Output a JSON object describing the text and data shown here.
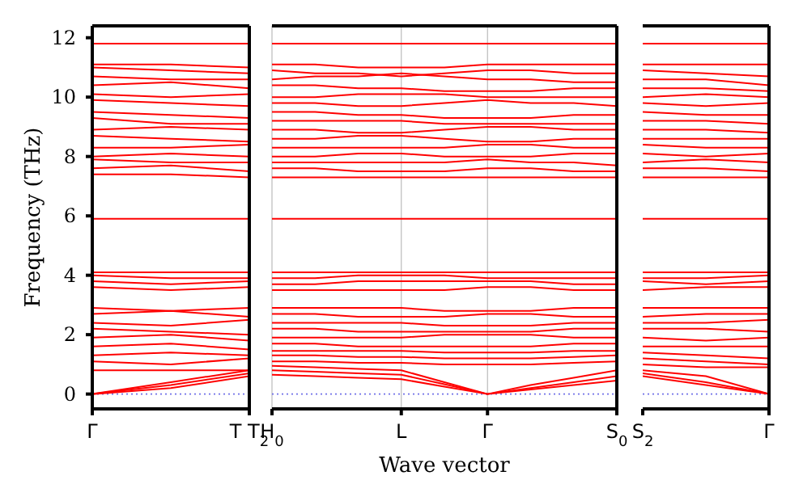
{
  "chart_data": [
    {
      "type": "line",
      "ylabel": "Frequency (THz)",
      "categories": [
        "Γ",
        null,
        "T T$_{2}$"
      ],
      "ylim": [
        -0.5,
        12.4
      ],
      "yticks": [
        0,
        2,
        4,
        6,
        8,
        10,
        12
      ],
      "color": "#ff0000",
      "marker": "none",
      "line_style": "solid",
      "ref_lines": [
        {
          "axis": "y",
          "value": 0,
          "color": "#6f6fe8",
          "line_style": "dotted"
        }
      ],
      "series": [
        {
          "values": [
            11.8,
            11.8,
            11.8
          ]
        },
        {
          "values": [
            11.1,
            11.1,
            11.0
          ]
        },
        {
          "values": [
            11.0,
            10.9,
            10.8
          ]
        },
        {
          "values": [
            10.7,
            10.6,
            10.6
          ]
        },
        {
          "values": [
            10.4,
            10.5,
            10.3
          ]
        },
        {
          "values": [
            10.1,
            10.0,
            10.1
          ]
        },
        {
          "values": [
            9.9,
            9.8,
            9.7
          ]
        },
        {
          "values": [
            9.5,
            9.4,
            9.3
          ]
        },
        {
          "values": [
            9.3,
            9.1,
            9.1
          ]
        },
        {
          "values": [
            8.9,
            9.0,
            8.9
          ]
        },
        {
          "values": [
            8.7,
            8.6,
            8.5
          ]
        },
        {
          "values": [
            8.3,
            8.3,
            8.4
          ]
        },
        {
          "values": [
            8.0,
            8.1,
            8.0
          ]
        },
        {
          "values": [
            7.9,
            7.8,
            7.8
          ]
        },
        {
          "values": [
            7.6,
            7.7,
            7.5
          ]
        },
        {
          "values": [
            7.4,
            7.4,
            7.3
          ]
        },
        {
          "values": [
            5.9,
            5.9,
            5.9
          ]
        },
        {
          "values": [
            4.1,
            4.1,
            4.1
          ]
        },
        {
          "values": [
            4.0,
            3.9,
            3.9
          ]
        },
        {
          "values": [
            3.8,
            3.7,
            3.8
          ]
        },
        {
          "values": [
            3.6,
            3.5,
            3.6
          ]
        },
        {
          "values": [
            2.9,
            2.8,
            2.9
          ]
        },
        {
          "values": [
            2.7,
            2.8,
            2.6
          ]
        },
        {
          "values": [
            2.4,
            2.3,
            2.5
          ]
        },
        {
          "values": [
            2.2,
            2.1,
            2.0
          ]
        },
        {
          "values": [
            1.9,
            2.0,
            1.8
          ]
        },
        {
          "values": [
            1.6,
            1.7,
            1.5
          ]
        },
        {
          "values": [
            1.3,
            1.4,
            1.3
          ]
        },
        {
          "values": [
            1.1,
            1.0,
            1.2
          ]
        },
        {
          "values": [
            0.8,
            0.8,
            0.8
          ]
        },
        {
          "values": [
            0,
            0.4,
            0.8
          ]
        },
        {
          "values": [
            0,
            0.3,
            0.7
          ]
        },
        {
          "values": [
            0,
            0.2,
            0.6
          ]
        }
      ]
    },
    {
      "type": "line",
      "xlabel": "Wave vector",
      "categories": [
        "H$_{0}$",
        null,
        null,
        "L",
        null,
        "Γ",
        null,
        null,
        "S$_{0}$"
      ],
      "ylim": [
        -0.5,
        12.4
      ],
      "yticks": [
        0,
        2,
        4,
        6,
        8,
        10,
        12
      ],
      "tick_labels": "x",
      "color": "#ff0000",
      "marker": "none",
      "line_style": "solid",
      "grid": "x",
      "ref_lines": [
        {
          "axis": "y",
          "value": 0,
          "color": "#6f6fe8",
          "line_style": "dotted"
        }
      ],
      "series": [
        {
          "values": [
            11.8,
            11.8,
            11.8,
            11.8,
            11.8,
            11.8,
            11.8,
            11.8,
            11.8
          ]
        },
        {
          "values": [
            11.1,
            11.1,
            11.0,
            11.0,
            11.0,
            11.1,
            11.1,
            11.1,
            11.1
          ]
        },
        {
          "values": [
            10.9,
            10.8,
            10.8,
            10.7,
            10.8,
            10.9,
            10.9,
            10.8,
            10.8
          ]
        },
        {
          "values": [
            10.6,
            10.7,
            10.7,
            10.8,
            10.7,
            10.6,
            10.6,
            10.5,
            10.5
          ]
        },
        {
          "values": [
            10.4,
            10.4,
            10.3,
            10.3,
            10.2,
            10.2,
            10.2,
            10.3,
            10.3
          ]
        },
        {
          "values": [
            10.0,
            10.0,
            10.1,
            10.1,
            10.1,
            10.0,
            10.0,
            10.0,
            10.0
          ]
        },
        {
          "values": [
            9.8,
            9.8,
            9.7,
            9.7,
            9.8,
            9.9,
            9.8,
            9.8,
            9.7
          ]
        },
        {
          "values": [
            9.5,
            9.5,
            9.4,
            9.4,
            9.3,
            9.3,
            9.3,
            9.4,
            9.4
          ]
        },
        {
          "values": [
            9.2,
            9.2,
            9.2,
            9.2,
            9.1,
            9.1,
            9.1,
            9.1,
            9.1
          ]
        },
        {
          "values": [
            8.9,
            8.9,
            8.8,
            8.8,
            8.9,
            9.0,
            9.0,
            8.9,
            8.9
          ]
        },
        {
          "values": [
            8.6,
            8.6,
            8.7,
            8.7,
            8.6,
            8.5,
            8.5,
            8.6,
            8.6
          ]
        },
        {
          "values": [
            8.3,
            8.3,
            8.3,
            8.3,
            8.3,
            8.4,
            8.4,
            8.3,
            8.3
          ]
        },
        {
          "values": [
            8.0,
            8.0,
            8.1,
            8.1,
            8.0,
            8.0,
            8.0,
            8.1,
            8.1
          ]
        },
        {
          "values": [
            7.8,
            7.8,
            7.8,
            7.8,
            7.8,
            7.9,
            7.8,
            7.8,
            7.7
          ]
        },
        {
          "values": [
            7.6,
            7.6,
            7.5,
            7.5,
            7.5,
            7.6,
            7.6,
            7.5,
            7.5
          ]
        },
        {
          "values": [
            7.3,
            7.3,
            7.3,
            7.3,
            7.3,
            7.3,
            7.3,
            7.3,
            7.3
          ]
        },
        {
          "values": [
            5.9,
            5.9,
            5.9,
            5.9,
            5.9,
            5.9,
            5.9,
            5.9,
            5.9
          ]
        },
        {
          "values": [
            4.1,
            4.1,
            4.1,
            4.1,
            4.1,
            4.1,
            4.1,
            4.1,
            4.1
          ]
        },
        {
          "values": [
            3.9,
            3.9,
            4.0,
            4.0,
            4.0,
            3.9,
            3.9,
            3.9,
            3.9
          ]
        },
        {
          "values": [
            3.7,
            3.7,
            3.8,
            3.8,
            3.8,
            3.8,
            3.8,
            3.7,
            3.7
          ]
        },
        {
          "values": [
            3.5,
            3.5,
            3.5,
            3.5,
            3.5,
            3.6,
            3.6,
            3.5,
            3.5
          ]
        },
        {
          "values": [
            2.9,
            2.9,
            2.9,
            2.9,
            2.8,
            2.8,
            2.8,
            2.9,
            2.9
          ]
        },
        {
          "values": [
            2.7,
            2.7,
            2.6,
            2.6,
            2.6,
            2.7,
            2.7,
            2.6,
            2.6
          ]
        },
        {
          "values": [
            2.4,
            2.4,
            2.4,
            2.4,
            2.3,
            2.3,
            2.3,
            2.4,
            2.4
          ]
        },
        {
          "values": [
            2.2,
            2.2,
            2.1,
            2.1,
            2.1,
            2.1,
            2.1,
            2.2,
            2.2
          ]
        },
        {
          "values": [
            1.9,
            1.9,
            1.9,
            1.9,
            2.0,
            2.0,
            2.0,
            1.9,
            1.9
          ]
        },
        {
          "values": [
            1.7,
            1.7,
            1.6,
            1.6,
            1.6,
            1.6,
            1.6,
            1.7,
            1.7
          ]
        },
        {
          "values": [
            1.45,
            1.45,
            1.45,
            1.45,
            1.4,
            1.4,
            1.4,
            1.45,
            1.45
          ]
        },
        {
          "values": [
            1.3,
            1.3,
            1.25,
            1.25,
            1.2,
            1.2,
            1.2,
            1.25,
            1.3
          ]
        },
        {
          "values": [
            1.1,
            1.1,
            1.05,
            1.05,
            1.0,
            1.0,
            1.0,
            1.05,
            1.1
          ]
        },
        {
          "values": [
            0.95,
            0.9,
            0.85,
            0.8,
            0.4,
            0,
            0.3,
            0.55,
            0.8
          ]
        },
        {
          "values": [
            0.8,
            0.75,
            0.7,
            0.65,
            0.33,
            0,
            0.2,
            0.4,
            0.6
          ]
        },
        {
          "values": [
            0.65,
            0.6,
            0.55,
            0.5,
            0.25,
            0,
            0.15,
            0.3,
            0.45
          ]
        }
      ]
    },
    {
      "type": "line",
      "categories": [
        "S$_{2}$",
        null,
        "Γ"
      ],
      "ylim": [
        -0.5,
        12.4
      ],
      "yticks": [
        0,
        2,
        4,
        6,
        8,
        10,
        12
      ],
      "tick_labels": "x",
      "color": "#ff0000",
      "marker": "none",
      "line_style": "solid",
      "ref_lines": [
        {
          "axis": "y",
          "value": 0,
          "color": "#6f6fe8",
          "line_style": "dotted"
        }
      ],
      "series": [
        {
          "values": [
            11.8,
            11.8,
            11.8
          ]
        },
        {
          "values": [
            11.1,
            11.1,
            11.1
          ]
        },
        {
          "values": [
            10.9,
            10.8,
            10.7
          ]
        },
        {
          "values": [
            10.6,
            10.6,
            10.4
          ]
        },
        {
          "values": [
            10.3,
            10.3,
            10.2
          ]
        },
        {
          "values": [
            10.0,
            10.1,
            10.0
          ]
        },
        {
          "values": [
            9.8,
            9.7,
            9.8
          ]
        },
        {
          "values": [
            9.5,
            9.4,
            9.4
          ]
        },
        {
          "values": [
            9.2,
            9.2,
            9.1
          ]
        },
        {
          "values": [
            8.9,
            8.9,
            8.8
          ]
        },
        {
          "values": [
            8.6,
            8.6,
            8.6
          ]
        },
        {
          "values": [
            8.4,
            8.3,
            8.3
          ]
        },
        {
          "values": [
            8.1,
            8.0,
            8.1
          ]
        },
        {
          "values": [
            7.8,
            7.9,
            7.8
          ]
        },
        {
          "values": [
            7.6,
            7.6,
            7.5
          ]
        },
        {
          "values": [
            7.3,
            7.3,
            7.3
          ]
        },
        {
          "values": [
            5.9,
            5.9,
            5.9
          ]
        },
        {
          "values": [
            4.1,
            4.1,
            4.1
          ]
        },
        {
          "values": [
            3.9,
            3.9,
            4.0
          ]
        },
        {
          "values": [
            3.8,
            3.7,
            3.8
          ]
        },
        {
          "values": [
            3.5,
            3.6,
            3.6
          ]
        },
        {
          "values": [
            2.9,
            2.9,
            2.9
          ]
        },
        {
          "values": [
            2.6,
            2.7,
            2.7
          ]
        },
        {
          "values": [
            2.4,
            2.4,
            2.5
          ]
        },
        {
          "values": [
            2.2,
            2.2,
            2.1
          ]
        },
        {
          "values": [
            1.9,
            1.8,
            1.9
          ]
        },
        {
          "values": [
            1.6,
            1.6,
            1.6
          ]
        },
        {
          "values": [
            1.4,
            1.3,
            1.2
          ]
        },
        {
          "values": [
            1.2,
            1.1,
            1.0
          ]
        },
        {
          "values": [
            1.0,
            0.9,
            0.9
          ]
        },
        {
          "values": [
            0.8,
            0.6,
            0
          ]
        },
        {
          "values": [
            0.7,
            0.4,
            0
          ]
        },
        {
          "values": [
            0.6,
            0.3,
            0
          ]
        }
      ]
    }
  ]
}
